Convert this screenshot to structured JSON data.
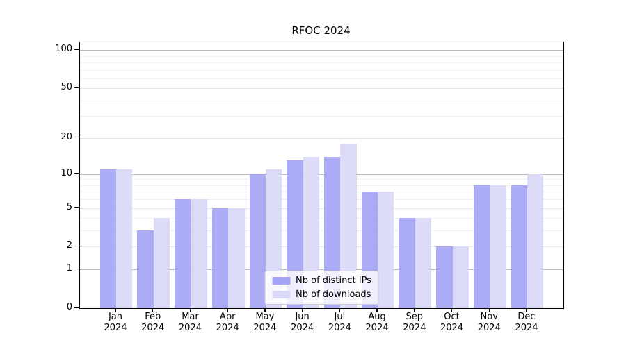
{
  "title": "RFOC 2024",
  "chart_data": {
    "type": "bar",
    "title": "RFOC 2024",
    "categories": [
      "Jan",
      "Feb",
      "Mar",
      "Apr",
      "May",
      "Jun",
      "Jul",
      "Aug",
      "Sep",
      "Oct",
      "Nov",
      "Dec"
    ],
    "x_sublabel": "2024",
    "series": [
      {
        "name": "Nb of distinct IPs",
        "color": "#a5a5f5",
        "values": [
          11,
          3,
          6,
          5,
          10,
          13,
          14,
          7,
          4,
          2,
          8,
          8
        ]
      },
      {
        "name": "Nb of downloads",
        "color": "#d9d9f8",
        "values": [
          11,
          4,
          6,
          5,
          11,
          14,
          18,
          7,
          4,
          2,
          8,
          10
        ]
      }
    ],
    "scale": "log1p",
    "ylim": [
      0,
      115
    ],
    "y_ticks": [
      0,
      1,
      2,
      5,
      10,
      20,
      50,
      100
    ],
    "y_minor_ticks": [
      3,
      4,
      6,
      7,
      8,
      9,
      30,
      40,
      60,
      70,
      80,
      90
    ],
    "y_emphasis_ticks": [
      1,
      10,
      100
    ],
    "xlabel": "",
    "ylabel": "",
    "grid": true,
    "legend_position": "lower center",
    "axis_color": "#000000",
    "grid_strong_color": "#b9b9b9",
    "grid_major_color": "#e3e3e3",
    "grid_minor_color": "#f0f0f0"
  }
}
